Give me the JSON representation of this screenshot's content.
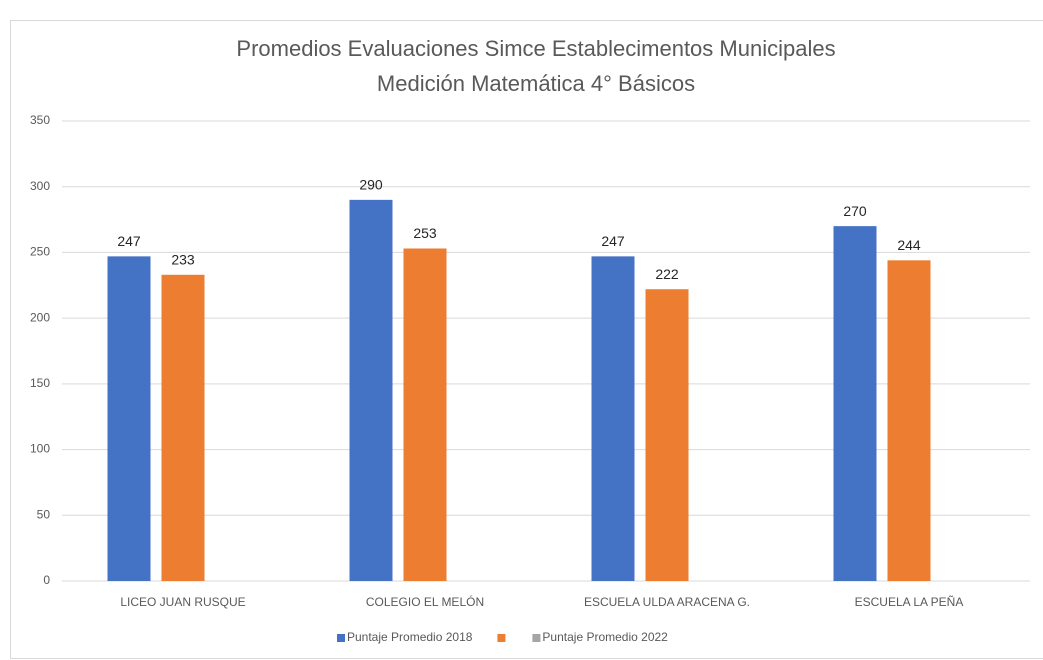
{
  "chart_data": {
    "type": "bar",
    "title": [
      "Promedios Evaluaciones Simce Establecimentos Municipales",
      "Medición Matemática 4° Básicos"
    ],
    "categories": [
      "LICEO JUAN RUSQUE",
      "COLEGIO EL MELÓN",
      "ESCUELA ULDA ARACENA G.",
      "ESCUELA LA PEÑA"
    ],
    "series": [
      {
        "name": "Puntaje Promedio 2018",
        "color": "#4472c4",
        "values": [
          247,
          290,
          247,
          270
        ]
      },
      {
        "color": "#ed7d31",
        "values": [
          233,
          253,
          222,
          244
        ]
      },
      {
        "name": "Puntaje Promedio 2022",
        "color": "#a5a5a5",
        "values": [
          null,
          null,
          null,
          null
        ]
      }
    ],
    "ylim": [
      0,
      350
    ],
    "yticks": [
      0,
      50,
      100,
      150,
      200,
      250,
      300,
      350
    ],
    "grid": true,
    "data_labels": true,
    "legend": "bottom"
  }
}
